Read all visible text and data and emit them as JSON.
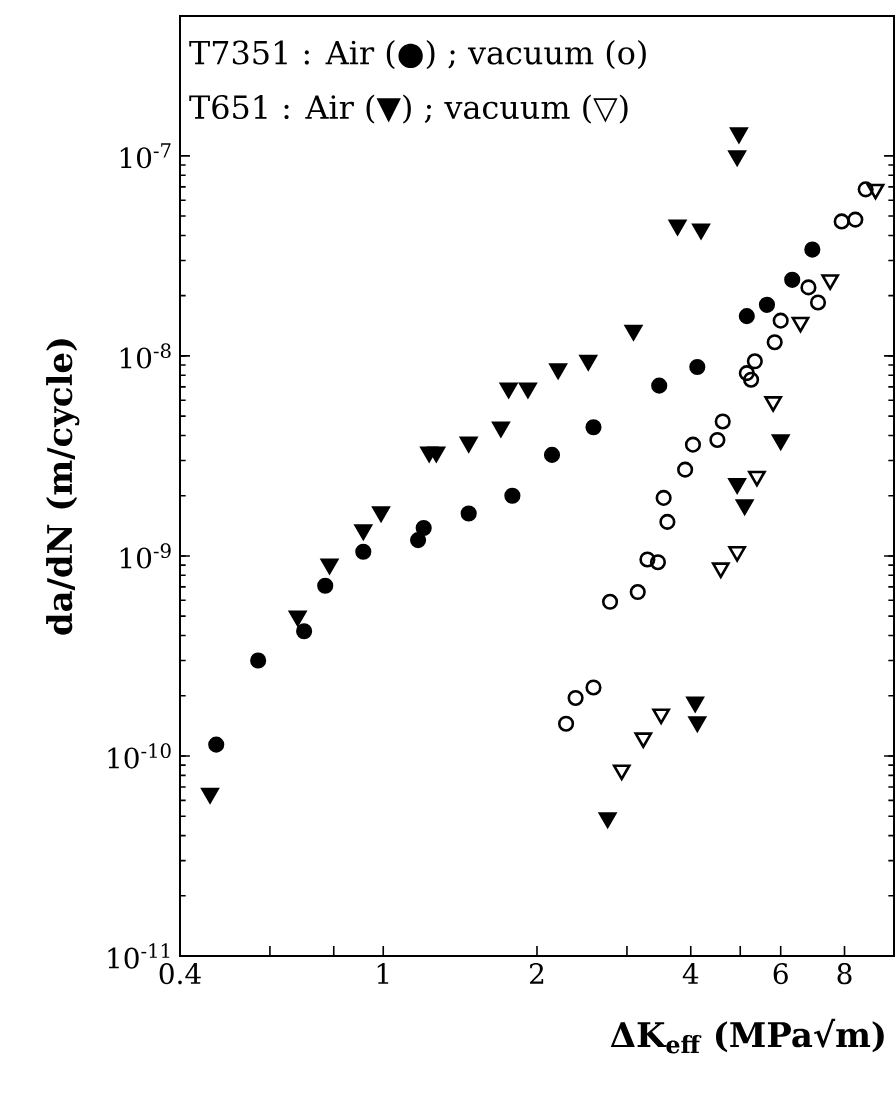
{
  "chart_data": {
    "type": "scatter",
    "xlabel": "**ΔK$_{eff}$  (MPa√m)**",
    "ylabel": "**da/dN  (m/cycle)**",
    "annotations": [
      "T7351 : Air (●) ; vacuum  (o)",
      "T651   : Air (▼) ; vacuum (▽)"
    ],
    "log": "xy",
    "grid": false,
    "xlim": [
      0.4,
      10
    ],
    "ylim": [
      1e-11,
      5e-07
    ],
    "xticks": [
      0.4,
      {
        "value": 0.6,
        "label": null
      },
      {
        "value": 0.8,
        "label": null
      },
      1,
      2,
      {
        "value": 3,
        "label": null
      },
      4,
      {
        "value": 5,
        "label": null
      },
      6,
      8
    ],
    "yticks": [
      {
        "value": 1e-11,
        "label": "10$^{-11}$"
      },
      {
        "value": 1e-10,
        "label": "10$^{-10}$"
      },
      {
        "value": 1e-09,
        "label": "10$^{-9}$"
      },
      {
        "value": 1e-08,
        "label": "10$^{-8}$"
      },
      {
        "value": 1e-07,
        "label": "10$^{-7}$"
      }
    ],
    "series": [
      {
        "color": "#000000",
        "marker": "circle",
        "x": [
          0.471,
          0.569,
          0.7,
          0.77,
          0.914,
          1.17,
          1.2,
          1.47,
          1.79,
          2.14,
          2.58,
          3.47,
          4.12,
          5.15,
          5.64,
          6.32,
          6.92
        ],
        "values": [
          1.14e-10,
          3e-10,
          4.2e-10,
          7.1e-10,
          1.05e-09,
          1.2e-09,
          1.38e-09,
          1.63e-09,
          2e-09,
          3.2e-09,
          4.4e-09,
          7.1e-09,
          8.8e-09,
          1.58e-08,
          1.8e-08,
          2.4e-08,
          3.4e-08
        ]
      },
      {
        "color": "#000000",
        "marker": "circle-open",
        "x": [
          2.28,
          2.38,
          2.58,
          2.78,
          3.15,
          3.29,
          3.45,
          3.6,
          3.54,
          3.9,
          4.04,
          4.51,
          4.62,
          5.25,
          5.15,
          5.34,
          5.84,
          6.0,
          6.8,
          7.1,
          7.9,
          8.4,
          8.8
        ],
        "values": [
          1.45e-10,
          1.95e-10,
          2.2e-10,
          5.9e-10,
          6.6e-10,
          9.6e-10,
          9.3e-10,
          1.48e-09,
          1.95e-09,
          2.7e-09,
          3.6e-09,
          3.8e-09,
          4.7e-09,
          7.6e-09,
          8.2e-09,
          9.4e-09,
          1.17e-08,
          1.5e-08,
          2.2e-08,
          1.85e-08,
          4.7e-08,
          4.8e-08,
          6.8e-08
        ]
      },
      {
        "color": "#000000",
        "marker": "triangle",
        "x": [
          0.458,
          0.68,
          0.785,
          0.914,
          0.99,
          1.23,
          1.27,
          1.47,
          1.7,
          1.76,
          1.92,
          2.2,
          2.52,
          3.09,
          3.77,
          4.19,
          4.93,
          4.97,
          2.75,
          4.08,
          4.12,
          4.93,
          5.1,
          6.0
        ],
        "values": [
          6.5e-11,
          5e-10,
          9.1e-10,
          1.35e-09,
          1.66e-09,
          3.3e-09,
          3.3e-09,
          3.7e-09,
          4.4e-09,
          6.9e-09,
          6.9e-09,
          8.6e-09,
          9.5e-09,
          1.34e-08,
          4.5e-08,
          4.3e-08,
          1e-07,
          1.3e-07,
          4.9e-11,
          1.86e-10,
          1.48e-10,
          2.3e-09,
          1.8e-09,
          3.8e-09
        ]
      },
      {
        "color": "#000000",
        "marker": "triangle-open",
        "x": [
          2.93,
          3.23,
          3.5,
          4.58,
          4.93,
          5.39,
          5.8,
          6.56,
          7.5,
          9.2
        ],
        "values": [
          8.5e-11,
          1.23e-10,
          1.62e-10,
          8.7e-10,
          1.05e-09,
          2.5e-09,
          5.9e-09,
          1.47e-08,
          2.4e-08,
          6.8e-08
        ]
      }
    ]
  }
}
